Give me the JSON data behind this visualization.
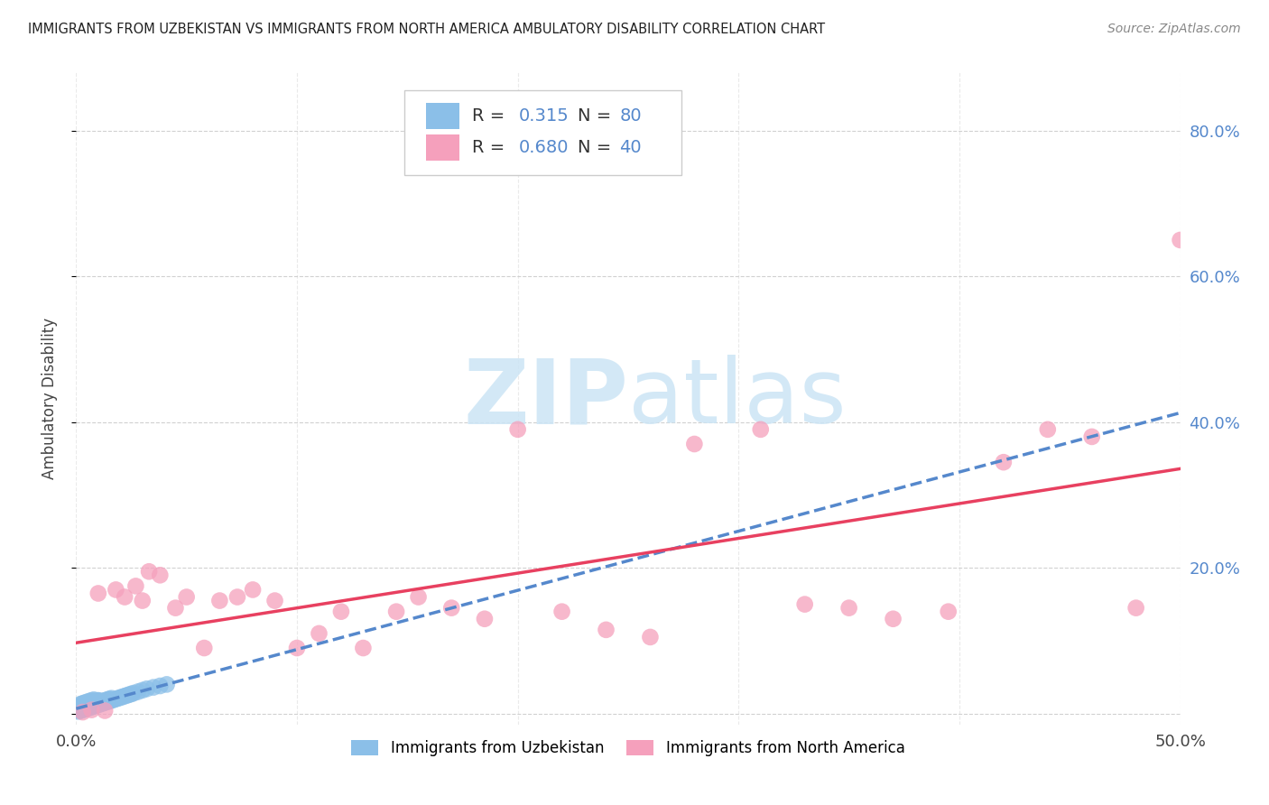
{
  "title": "IMMIGRANTS FROM UZBEKISTAN VS IMMIGRANTS FROM NORTH AMERICA AMBULATORY DISABILITY CORRELATION CHART",
  "source": "Source: ZipAtlas.com",
  "ylabel": "Ambulatory Disability",
  "xlim": [
    0.0,
    0.5
  ],
  "ylim": [
    -0.015,
    0.88
  ],
  "yticks": [
    0.0,
    0.2,
    0.4,
    0.6,
    0.8
  ],
  "ytick_labels_right": [
    "",
    "20.0%",
    "40.0%",
    "60.0%",
    "80.0%"
  ],
  "xticks": [
    0.0,
    0.1,
    0.2,
    0.3,
    0.4,
    0.5
  ],
  "xtick_labels": [
    "0.0%",
    "",
    "",
    "",
    "",
    "50.0%"
  ],
  "r_uzbekistan": "0.315",
  "n_uzbekistan": "80",
  "r_north_america": "0.680",
  "n_north_america": "40",
  "color_uzbekistan": "#8bbfe8",
  "color_north_america": "#f5a0bc",
  "color_line_uzbekistan": "#5588cc",
  "color_line_north_america": "#e84060",
  "color_ytick": "#5588cc",
  "watermark_color": "#cce5f5",
  "legend_label_uzbekistan": "Immigrants from Uzbekistan",
  "legend_label_north_america": "Immigrants from North America",
  "uzbekistan_x": [
    0.001,
    0.001,
    0.001,
    0.002,
    0.002,
    0.002,
    0.002,
    0.003,
    0.003,
    0.003,
    0.003,
    0.003,
    0.003,
    0.004,
    0.004,
    0.004,
    0.004,
    0.004,
    0.005,
    0.005,
    0.005,
    0.005,
    0.005,
    0.006,
    0.006,
    0.006,
    0.006,
    0.006,
    0.007,
    0.007,
    0.007,
    0.007,
    0.008,
    0.008,
    0.008,
    0.008,
    0.009,
    0.009,
    0.009,
    0.01,
    0.01,
    0.01,
    0.011,
    0.011,
    0.012,
    0.012,
    0.013,
    0.013,
    0.014,
    0.014,
    0.015,
    0.015,
    0.016,
    0.016,
    0.017,
    0.018,
    0.019,
    0.02,
    0.021,
    0.022,
    0.023,
    0.024,
    0.025,
    0.026,
    0.028,
    0.03,
    0.032,
    0.035,
    0.038,
    0.041,
    0.001,
    0.002,
    0.003,
    0.004,
    0.005,
    0.006,
    0.007,
    0.008,
    0.009,
    0.01
  ],
  "uzbekistan_y": [
    0.005,
    0.008,
    0.01,
    0.004,
    0.007,
    0.01,
    0.013,
    0.005,
    0.008,
    0.011,
    0.014,
    0.007,
    0.01,
    0.006,
    0.009,
    0.012,
    0.015,
    0.008,
    0.007,
    0.01,
    0.013,
    0.016,
    0.009,
    0.008,
    0.011,
    0.014,
    0.017,
    0.01,
    0.009,
    0.012,
    0.015,
    0.018,
    0.01,
    0.013,
    0.016,
    0.019,
    0.011,
    0.014,
    0.017,
    0.012,
    0.015,
    0.018,
    0.013,
    0.016,
    0.014,
    0.017,
    0.015,
    0.018,
    0.016,
    0.019,
    0.017,
    0.02,
    0.018,
    0.021,
    0.019,
    0.02,
    0.021,
    0.022,
    0.023,
    0.024,
    0.025,
    0.026,
    0.027,
    0.028,
    0.03,
    0.032,
    0.034,
    0.036,
    0.038,
    0.04,
    0.003,
    0.006,
    0.009,
    0.012,
    0.011,
    0.01,
    0.013,
    0.016,
    0.015,
    0.018
  ],
  "north_america_x": [
    0.003,
    0.007,
    0.01,
    0.013,
    0.018,
    0.022,
    0.027,
    0.03,
    0.033,
    0.038,
    0.045,
    0.05,
    0.058,
    0.065,
    0.073,
    0.08,
    0.09,
    0.1,
    0.11,
    0.12,
    0.13,
    0.145,
    0.155,
    0.17,
    0.185,
    0.2,
    0.22,
    0.24,
    0.26,
    0.28,
    0.31,
    0.33,
    0.35,
    0.37,
    0.395,
    0.42,
    0.44,
    0.46,
    0.48,
    0.5
  ],
  "north_america_y": [
    0.002,
    0.005,
    0.165,
    0.004,
    0.17,
    0.16,
    0.175,
    0.155,
    0.195,
    0.19,
    0.145,
    0.16,
    0.09,
    0.155,
    0.16,
    0.17,
    0.155,
    0.09,
    0.11,
    0.14,
    0.09,
    0.14,
    0.16,
    0.145,
    0.13,
    0.39,
    0.14,
    0.115,
    0.105,
    0.37,
    0.39,
    0.15,
    0.145,
    0.13,
    0.14,
    0.345,
    0.39,
    0.38,
    0.145,
    0.65
  ]
}
